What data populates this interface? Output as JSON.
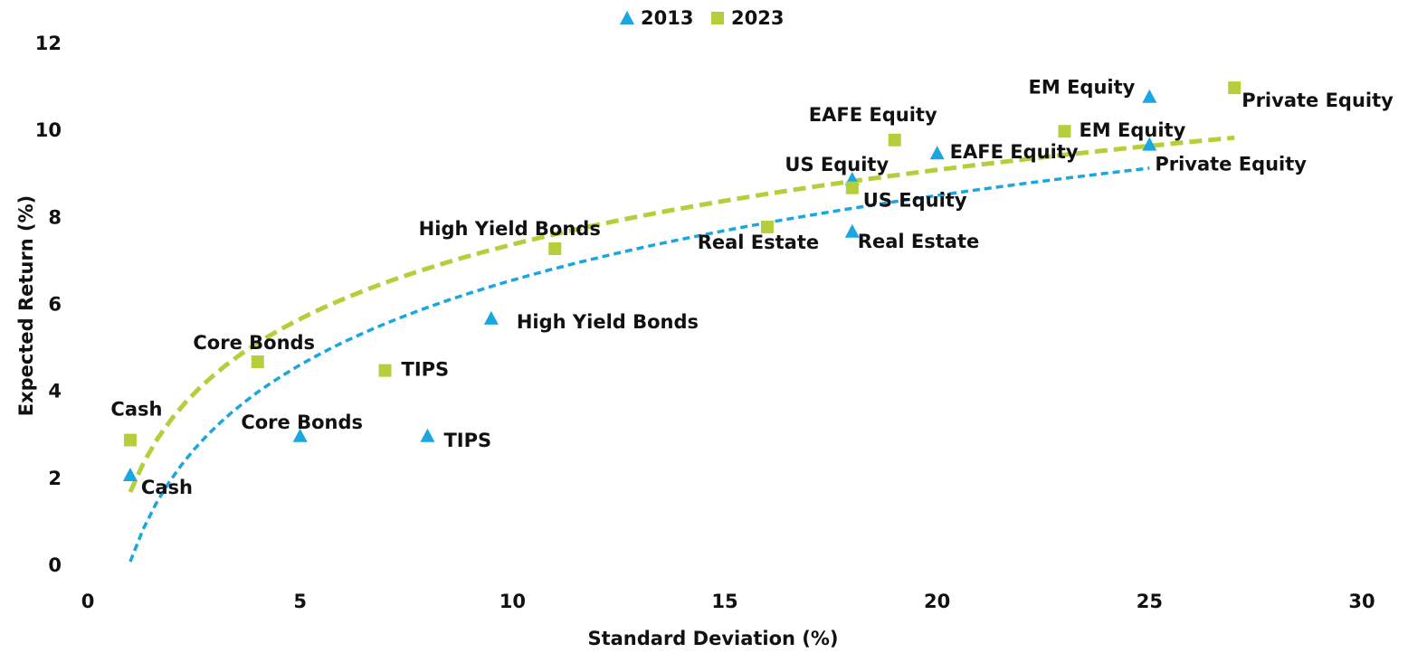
{
  "chart_data": {
    "type": "scatter",
    "xlabel": "Standard Deviation (%)",
    "ylabel": "Expected Return (%)",
    "xlim": [
      0,
      30
    ],
    "xticks": [
      0,
      5,
      10,
      15,
      20,
      25,
      30
    ],
    "ylim": [
      0,
      12
    ],
    "yticks": [
      0,
      2,
      4,
      6,
      8,
      10,
      12
    ],
    "legend": "top",
    "trendline": "log",
    "series": [
      {
        "name": "2013",
        "color": "#1aa6e0",
        "marker": "triangle",
        "labels": [
          "Cash",
          "Core Bonds",
          "TIPS",
          "High Yield Bonds",
          "Real Estate",
          "US Equity",
          "EAFE Equity",
          "EM Equity",
          "Private Equity"
        ],
        "x": [
          1,
          5,
          8,
          9.5,
          18,
          18,
          20,
          25,
          25
        ],
        "values": [
          2.1,
          3.0,
          3.0,
          5.7,
          7.7,
          8.9,
          9.5,
          10.8,
          9.7
        ]
      },
      {
        "name": "2023",
        "color": "#b5cf3c",
        "marker": "square",
        "labels": [
          "Cash",
          "Core Bonds",
          "TIPS",
          "High Yield Bonds",
          "Real Estate",
          "US Equity",
          "EAFE Equity",
          "EM Equity",
          "Private Equity"
        ],
        "x": [
          1,
          4,
          7,
          11,
          16,
          18,
          19,
          23,
          27
        ],
        "values": [
          2.9,
          4.7,
          4.5,
          7.3,
          7.8,
          8.7,
          9.8,
          10.0,
          11.0
        ]
      }
    ]
  }
}
